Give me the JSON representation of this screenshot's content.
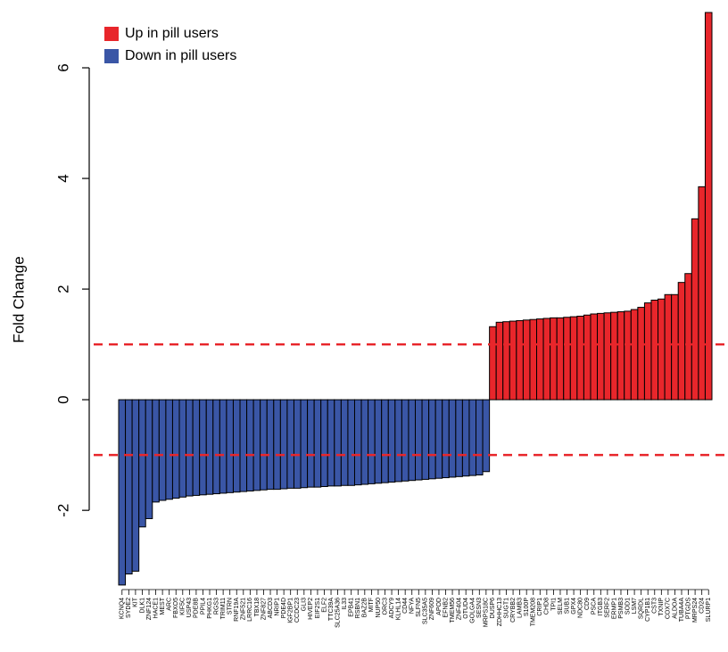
{
  "chart_data": {
    "type": "bar",
    "ylabel": "Fold Change",
    "categories": [
      "KCNQ4",
      "SYDE2",
      "KIT",
      "DLK1",
      "ZNF124",
      "HACE1",
      "MEST",
      "ARC",
      "FBXO5",
      "KIF5C",
      "USP43",
      "PDE8B",
      "PPIL4",
      "PHKG1",
      "RGS3",
      "TRIM11",
      "STRN",
      "RNF19A",
      "ZNF521",
      "LRRC16",
      "TBX18",
      "ZNF827",
      "ABCD3",
      "NRIP1",
      "PDE4D",
      "IGF2BP1",
      "CCDC23",
      "GLI3",
      "HIVEP2",
      "EIF2S1",
      "ELF2",
      "TTC39A",
      "SLC25A36",
      "IL33",
      "EPB41",
      "RSBN1",
      "BAZ2B",
      "MITF",
      "NUP50",
      "ORC3",
      "ADCY9",
      "KLHL14",
      "CD44",
      "NFYA",
      "SLFN5",
      "SLC35A5",
      "ZNF609",
      "APOD",
      "EFNB2",
      "TMEM56",
      "ZNF404",
      "OTUD4",
      "GOLGA4",
      "SESN3",
      "MRPS18C",
      "DUSP6",
      "ZDHHC13",
      "SUGT1",
      "CRYBB2",
      "LAMB3",
      "S100P",
      "TMEM208",
      "CRIP1",
      "CHD8",
      "TPI1",
      "SELM",
      "SUB1",
      "GPX4",
      "NDC80",
      "CD9",
      "PSCA",
      "ITGB3",
      "SERF2",
      "ERMP1",
      "PSMB3",
      "SOD1",
      "LSM7",
      "SQRDL",
      "CYP1B1",
      "CST3",
      "TXNIP",
      "COX7C",
      "ALDOA",
      "TUBA4A",
      "PTGDS",
      "MRPS24",
      "CD24",
      "SLURP1"
    ],
    "series": [
      {
        "name": "Up in pill users",
        "color": "#e8262b",
        "values": [
          null,
          null,
          null,
          null,
          null,
          null,
          null,
          null,
          null,
          null,
          null,
          null,
          null,
          null,
          null,
          null,
          null,
          null,
          null,
          null,
          null,
          null,
          null,
          null,
          null,
          null,
          null,
          null,
          null,
          null,
          null,
          null,
          null,
          null,
          null,
          null,
          null,
          null,
          null,
          null,
          null,
          null,
          null,
          null,
          null,
          null,
          null,
          null,
          null,
          null,
          null,
          null,
          null,
          null,
          null,
          1.32,
          1.4,
          1.41,
          1.42,
          1.43,
          1.44,
          1.45,
          1.46,
          1.47,
          1.48,
          1.48,
          1.49,
          1.5,
          1.51,
          1.53,
          1.55,
          1.56,
          1.57,
          1.58,
          1.59,
          1.6,
          1.63,
          1.67,
          1.75,
          1.8,
          1.82,
          1.9,
          1.9,
          2.12,
          2.28,
          3.27,
          3.85,
          7.0
        ]
      },
      {
        "name": "Down in pill users",
        "color": "#3a56a6",
        "values": [
          -3.35,
          -3.15,
          -3.1,
          -2.3,
          -2.15,
          -1.85,
          -1.82,
          -1.8,
          -1.78,
          -1.76,
          -1.74,
          -1.73,
          -1.72,
          -1.71,
          -1.7,
          -1.69,
          -1.68,
          -1.67,
          -1.66,
          -1.65,
          -1.64,
          -1.63,
          -1.62,
          -1.62,
          -1.61,
          -1.6,
          -1.6,
          -1.59,
          -1.58,
          -1.58,
          -1.57,
          -1.56,
          -1.56,
          -1.55,
          -1.55,
          -1.54,
          -1.53,
          -1.52,
          -1.51,
          -1.5,
          -1.49,
          -1.48,
          -1.47,
          -1.46,
          -1.45,
          -1.44,
          -1.43,
          -1.42,
          -1.41,
          -1.4,
          -1.39,
          -1.38,
          -1.37,
          -1.36,
          -1.3,
          null,
          null,
          null,
          null,
          null,
          null,
          null,
          null,
          null,
          null,
          null,
          null,
          null,
          null,
          null,
          null,
          null,
          null,
          null,
          null,
          null,
          null,
          null,
          null,
          null,
          null,
          null,
          null,
          null,
          null,
          null,
          null,
          null
        ]
      }
    ],
    "ylim": [
      -3.4,
      7.0
    ],
    "yticks": [
      -2,
      0,
      2,
      4,
      6
    ],
    "hlines": [
      1,
      -1
    ],
    "hline_color": "#e8262b",
    "legend": "top-left"
  }
}
